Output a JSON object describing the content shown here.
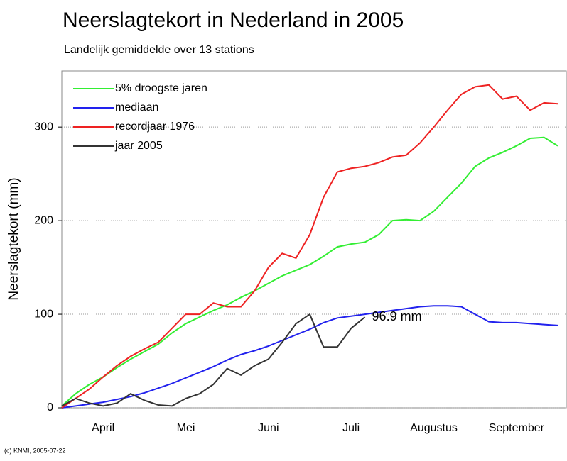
{
  "chart_data": {
    "type": "line",
    "title": "Neerslagtekort in Nederland in 2005",
    "subtitle": "Landelijk gemiddelde over 13 stations",
    "y_label": "Neerslagtekort (mm)",
    "credit": "(c) KNMI, 2005-07-22",
    "annotation": "96.9 mm",
    "categories": [
      null,
      null,
      null,
      "April",
      null,
      null,
      null,
      null,
      null,
      "Mei",
      null,
      null,
      null,
      null,
      null,
      "Juni",
      null,
      null,
      null,
      null,
      null,
      "Juli",
      null,
      null,
      null,
      null,
      null,
      "Augustus",
      null,
      null,
      null,
      null,
      null,
      "September",
      null,
      null,
      null
    ],
    "ylim": [
      0,
      360
    ],
    "yticks": [
      0,
      100,
      200,
      300
    ],
    "grid": true,
    "legend": "upper-left",
    "series": [
      {
        "name": "5% droogste jaren",
        "color": "#33ee33",
        "values": [
          2,
          15,
          25,
          33,
          43,
          52,
          60,
          68,
          80,
          90,
          97,
          104,
          110,
          118,
          125,
          133,
          141,
          147,
          153,
          162,
          172,
          175,
          177,
          185,
          200,
          201,
          200,
          210,
          225,
          240,
          258,
          267,
          273,
          280,
          288,
          289,
          280
        ]
      },
      {
        "name": "mediaan",
        "color": "#2222ee",
        "values": [
          0,
          2,
          4,
          6,
          9,
          12,
          16,
          21,
          26,
          32,
          38,
          44,
          51,
          57,
          61,
          66,
          72,
          78,
          84,
          91,
          96,
          98,
          100,
          102,
          104,
          106,
          108,
          109,
          109,
          108,
          100,
          92,
          91,
          91,
          90,
          89,
          88
        ]
      },
      {
        "name": "recordjaar 1976",
        "color": "#ee2222",
        "values": [
          0,
          10,
          20,
          33,
          45,
          55,
          63,
          70,
          85,
          100,
          100,
          112,
          108,
          108,
          125,
          150,
          165,
          160,
          185,
          225,
          252,
          256,
          258,
          262,
          268,
          270,
          283,
          300,
          318,
          335,
          343,
          345,
          330,
          333,
          318,
          326,
          325
        ]
      },
      {
        "name": "jaar 2005",
        "color": "#333333",
        "values": [
          2,
          10,
          5,
          2,
          5,
          15,
          8,
          3,
          2,
          10,
          15,
          25,
          42,
          35,
          45,
          52,
          70,
          90,
          100,
          65,
          65,
          85,
          96.9,
          null,
          null,
          null,
          null,
          null,
          null,
          null,
          null,
          null,
          null,
          null,
          null,
          null,
          null
        ]
      }
    ]
  }
}
